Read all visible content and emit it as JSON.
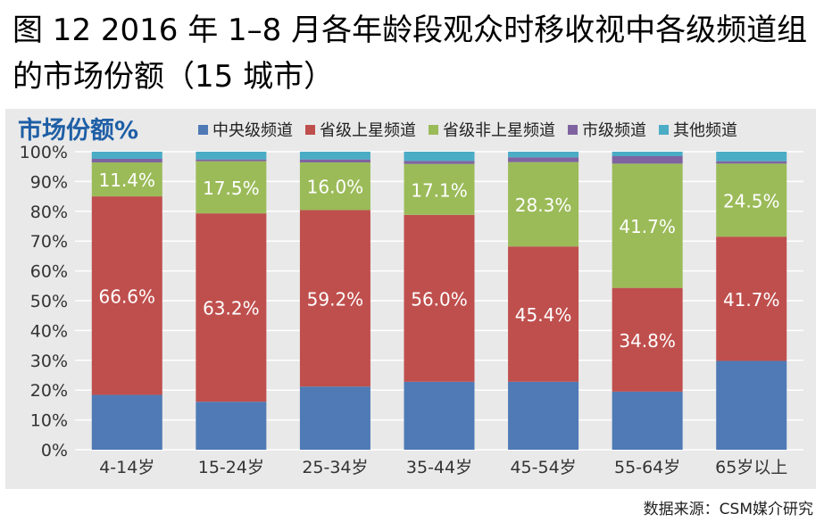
{
  "title": "图 12 2016 年 1–8 月各年龄段观众时移收视中各级频道组的市场份额（15 城市）",
  "source": "数据来源：CSM媒介研究",
  "chart_data": {
    "type": "bar",
    "stacked": true,
    "title": "市场份额%",
    "ylim": [
      0,
      100
    ],
    "yticks": [
      "0%",
      "10%",
      "20%",
      "30%",
      "40%",
      "50%",
      "60%",
      "70%",
      "80%",
      "90%",
      "100%"
    ],
    "grid": true,
    "legend_position": "top",
    "categories": [
      "4-14岁",
      "15-24岁",
      "25-34岁",
      "35-44岁",
      "45-54岁",
      "55-64岁",
      "65岁以上"
    ],
    "series": [
      {
        "name": "中央级频道",
        "color": "#4f7ab5",
        "values": [
          18.4,
          16.1,
          21.2,
          22.8,
          22.8,
          19.5,
          29.8
        ],
        "labels": [
          "",
          "",
          "",
          "",
          "",
          "",
          ""
        ]
      },
      {
        "name": "省级上星频道",
        "color": "#bf4f4d",
        "values": [
          66.6,
          63.2,
          59.2,
          56.0,
          45.4,
          34.8,
          41.7
        ],
        "labels": [
          "66.6%",
          "63.2%",
          "59.2%",
          "56.0%",
          "45.4%",
          "34.8%",
          "41.7%"
        ]
      },
      {
        "name": "省级非上星频道",
        "color": "#9bbb59",
        "values": [
          11.4,
          17.5,
          16.0,
          17.1,
          28.3,
          41.7,
          24.5
        ],
        "labels": [
          "11.4%",
          "17.5%",
          "16.0%",
          "17.1%",
          "28.3%",
          "41.7%",
          "24.5%"
        ]
      },
      {
        "name": "市级频道",
        "color": "#7f63a0",
        "values": [
          1.2,
          0.6,
          1.0,
          1.0,
          1.6,
          2.5,
          0.8
        ],
        "labels": [
          "",
          "",
          "",
          "",
          "",
          "",
          ""
        ]
      },
      {
        "name": "其他频道",
        "color": "#4bacc6",
        "values": [
          2.4,
          2.6,
          2.6,
          3.1,
          1.9,
          1.5,
          3.2
        ],
        "labels": [
          "",
          "",
          "",
          "",
          "",
          "",
          ""
        ]
      }
    ]
  }
}
